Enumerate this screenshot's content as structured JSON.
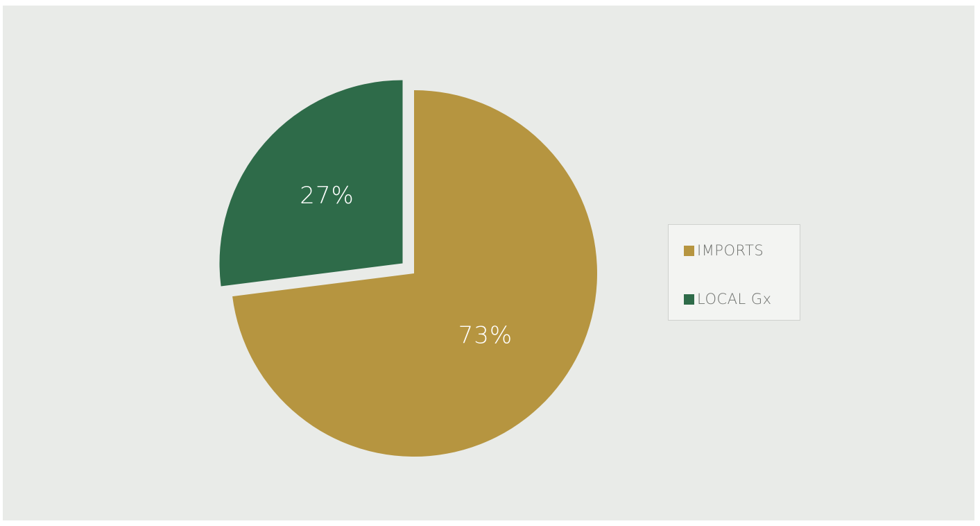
{
  "chart_data": {
    "type": "pie",
    "categories": [
      "IMPORTS",
      "LOCAL Gx"
    ],
    "values": [
      73,
      27
    ],
    "value_labels": [
      "73%",
      "27%"
    ],
    "colors": [
      "#b69540",
      "#2e6b49"
    ],
    "exploded": [
      false,
      true
    ],
    "background": "#e9ebe8",
    "legend": {
      "position": "right",
      "items": [
        {
          "label": "IMPORTS",
          "color": "#b69540"
        },
        {
          "label": "LOCAL Gx",
          "color": "#2e6b49"
        }
      ]
    }
  }
}
